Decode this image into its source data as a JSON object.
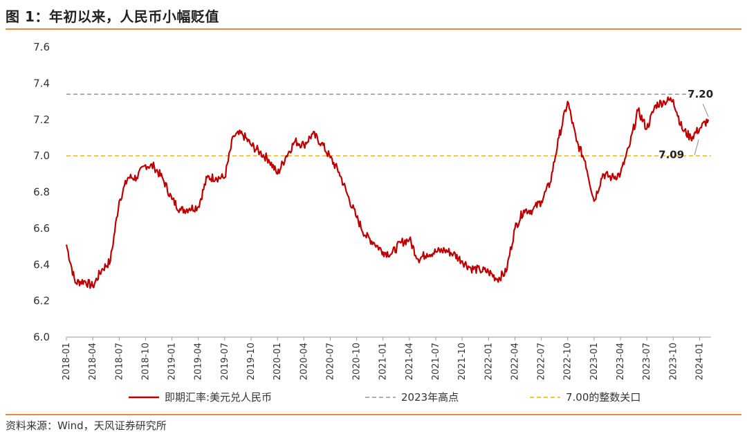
{
  "figure": {
    "title": "图 1：年初以来，人民币小幅贬值",
    "source": "资料来源：Wind，天风证券研究所"
  },
  "chart_data": {
    "type": "line",
    "ylim": [
      6.0,
      7.6
    ],
    "y_ticks": [
      "6.0",
      "6.2",
      "6.4",
      "6.6",
      "6.8",
      "7.0",
      "7.2",
      "7.4",
      "7.6"
    ],
    "x_ticks": [
      "2018-01",
      "2018-04",
      "2018-07",
      "2018-10",
      "2019-01",
      "2019-04",
      "2019-07",
      "2019-10",
      "2020-01",
      "2020-04",
      "2020-07",
      "2020-10",
      "2021-01",
      "2021-04",
      "2021-07",
      "2021-10",
      "2022-01",
      "2022-04",
      "2022-07",
      "2022-10",
      "2023-01",
      "2023-04",
      "2023-07",
      "2023-10",
      "2024-01"
    ],
    "x_range": [
      "2018-01",
      "2024-02"
    ],
    "series": [
      {
        "name": "即期汇率:美元兑人民币",
        "color": "#c00000",
        "x": [
          "2018-01",
          "2018-02",
          "2018-03",
          "2018-04",
          "2018-05",
          "2018-06",
          "2018-07",
          "2018-08",
          "2018-09",
          "2018-10",
          "2018-11",
          "2018-12",
          "2019-01",
          "2019-02",
          "2019-03",
          "2019-04",
          "2019-05",
          "2019-06",
          "2019-07",
          "2019-08",
          "2019-09",
          "2019-10",
          "2019-11",
          "2019-12",
          "2020-01",
          "2020-02",
          "2020-03",
          "2020-04",
          "2020-05",
          "2020-06",
          "2020-07",
          "2020-08",
          "2020-09",
          "2020-10",
          "2020-11",
          "2020-12",
          "2021-01",
          "2021-02",
          "2021-03",
          "2021-04",
          "2021-05",
          "2021-06",
          "2021-07",
          "2021-08",
          "2021-09",
          "2021-10",
          "2021-11",
          "2021-12",
          "2022-01",
          "2022-02",
          "2022-03",
          "2022-04",
          "2022-05",
          "2022-06",
          "2022-07",
          "2022-08",
          "2022-09",
          "2022-10",
          "2022-11",
          "2022-12",
          "2023-01",
          "2023-02",
          "2023-03",
          "2023-04",
          "2023-05",
          "2023-06",
          "2023-07",
          "2023-08",
          "2023-09",
          "2023-10",
          "2023-11",
          "2023-12",
          "2024-01",
          "2024-02"
        ],
        "values": [
          6.51,
          6.3,
          6.31,
          6.28,
          6.37,
          6.42,
          6.75,
          6.88,
          6.88,
          6.95,
          6.94,
          6.87,
          6.76,
          6.7,
          6.71,
          6.72,
          6.88,
          6.88,
          6.88,
          7.11,
          7.12,
          7.06,
          7.02,
          6.98,
          6.9,
          7.0,
          7.08,
          7.06,
          7.12,
          7.07,
          6.99,
          6.91,
          6.78,
          6.66,
          6.56,
          6.52,
          6.47,
          6.46,
          6.52,
          6.54,
          6.43,
          6.46,
          6.47,
          6.48,
          6.46,
          6.42,
          6.38,
          6.37,
          6.36,
          6.32,
          6.36,
          6.6,
          6.7,
          6.7,
          6.75,
          6.85,
          7.1,
          7.3,
          7.08,
          6.97,
          6.75,
          6.9,
          6.88,
          6.9,
          7.05,
          7.25,
          7.15,
          7.28,
          7.3,
          7.31,
          7.15,
          7.1,
          7.15,
          7.2
        ]
      },
      {
        "name": "2023年高点",
        "color": "#7f7f7f",
        "value": 7.34
      },
      {
        "name": "7.00的整数关口",
        "color": "#ffc000",
        "value": 7.0
      }
    ],
    "annotations": [
      {
        "text": "7.20",
        "value": 7.2
      },
      {
        "text": "7.09",
        "value": 7.09
      }
    ],
    "legend_position": "bottom",
    "grid": false
  }
}
